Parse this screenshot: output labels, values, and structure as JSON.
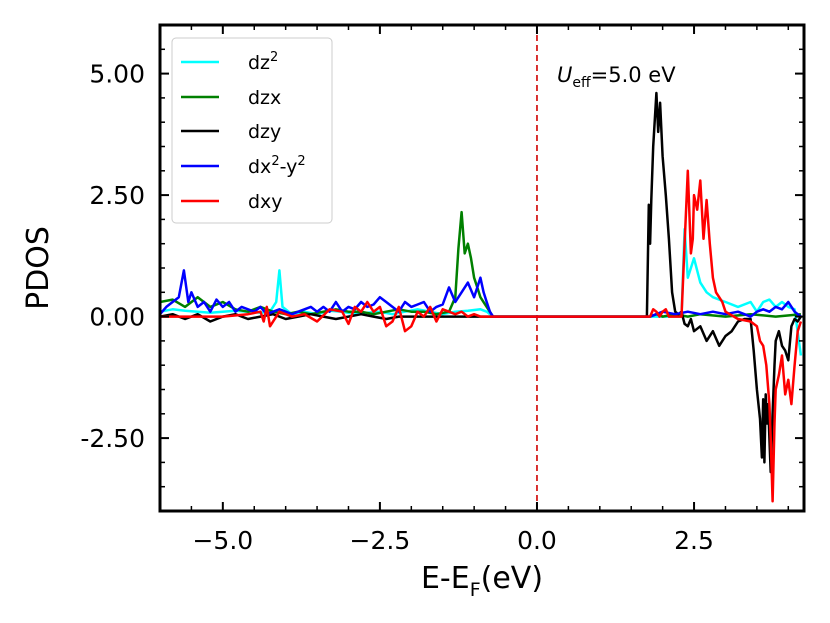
{
  "chart_data": {
    "type": "line",
    "title": "",
    "annotation": {
      "symbol": "U",
      "sub": "eff",
      "rest": "=5.0 eV"
    },
    "xlabel": {
      "main": "E-E",
      "sub": "F",
      "unit": "(eV)"
    },
    "ylabel": "PDOS",
    "xlim": [
      -6.0,
      4.25
    ],
    "ylim": [
      -4.0,
      6.0
    ],
    "xticks": [
      -5.0,
      -2.5,
      0.0,
      2.5
    ],
    "xtick_labels": [
      "−5.0",
      "−2.5",
      "0.0",
      "2.5"
    ],
    "yticks": [
      5.0,
      2.5,
      0.0,
      -2.5
    ],
    "ytick_labels": [
      "5.00",
      "2.50",
      "0.00",
      "-2.50"
    ],
    "fermi_level": 0.0,
    "legend": [
      {
        "label": "dz",
        "sup": "2",
        "color": "#00ffff"
      },
      {
        "label": "dzx",
        "color": "#008000"
      },
      {
        "label": "dzy",
        "color": "#000000"
      },
      {
        "label": "dx",
        "sup": "2",
        "mid": "-y",
        "sup2": "2",
        "color": "#0000ff"
      },
      {
        "label": "dxy",
        "color": "#ff0000"
      }
    ],
    "series": [
      {
        "name": "dz2",
        "color": "#00ffff",
        "x": [
          -6.0,
          -5.8,
          -5.6,
          -5.4,
          -5.2,
          -5.0,
          -4.8,
          -4.6,
          -4.4,
          -4.25,
          -4.15,
          -4.1,
          -4.05,
          -3.9,
          -3.7,
          -3.5,
          -3.3,
          -3.1,
          -2.9,
          -2.7,
          -2.5,
          -2.3,
          -2.1,
          -1.9,
          -1.7,
          -1.5,
          -1.3,
          -1.1,
          -0.9,
          -0.8,
          -0.7,
          0.0,
          1.0,
          1.8,
          2.3,
          2.35,
          2.4,
          2.5,
          2.6,
          2.7,
          2.8,
          3.0,
          3.2,
          3.4,
          3.5,
          3.6,
          3.7,
          3.8,
          3.9,
          4.0,
          4.1,
          4.2
        ],
        "y": [
          0.1,
          0.15,
          0.12,
          0.1,
          0.08,
          0.1,
          0.12,
          0.1,
          0.08,
          0.1,
          0.3,
          0.95,
          0.2,
          0.05,
          0.1,
          0.05,
          0.12,
          0.1,
          0.05,
          0.08,
          0.1,
          0.05,
          0.1,
          0.15,
          0.1,
          0.05,
          0.1,
          0.12,
          0.15,
          0.1,
          0.0,
          0.0,
          0.0,
          0.0,
          0.0,
          1.8,
          0.8,
          1.2,
          0.7,
          0.5,
          0.4,
          0.3,
          0.2,
          0.3,
          0.1,
          0.3,
          0.35,
          0.2,
          0.3,
          0.2,
          0.15,
          -0.8
        ]
      },
      {
        "name": "dzx",
        "color": "#008000",
        "x": [
          -6.0,
          -5.8,
          -5.6,
          -5.4,
          -5.2,
          -5.0,
          -4.8,
          -4.6,
          -4.4,
          -4.2,
          -4.0,
          -3.8,
          -3.6,
          -3.4,
          -3.2,
          -3.0,
          -2.8,
          -2.6,
          -2.4,
          -2.2,
          -2.0,
          -1.8,
          -1.6,
          -1.4,
          -1.3,
          -1.25,
          -1.2,
          -1.15,
          -1.1,
          -1.05,
          -1.0,
          -0.95,
          -0.9,
          -0.8,
          -0.7,
          0.0,
          1.0,
          1.8,
          1.9,
          2.0,
          2.2,
          2.4,
          2.6,
          3.0,
          3.4,
          3.8,
          4.2
        ],
        "y": [
          0.3,
          0.35,
          0.2,
          0.4,
          0.2,
          0.3,
          0.15,
          0.1,
          0.2,
          0.1,
          0.05,
          0.1,
          0.05,
          0.1,
          0.15,
          0.1,
          0.1,
          0.05,
          0.1,
          0.15,
          0.1,
          0.1,
          0.05,
          0.1,
          0.4,
          1.4,
          2.15,
          1.3,
          1.5,
          1.2,
          0.8,
          0.6,
          0.4,
          0.2,
          0.0,
          0.0,
          0.0,
          0.0,
          0.05,
          0.0,
          0.05,
          0.0,
          0.05,
          0.0,
          0.05,
          0.0,
          0.05
        ]
      },
      {
        "name": "dzy",
        "color": "#000000",
        "x": [
          -6.0,
          -5.8,
          -5.6,
          -5.4,
          -5.2,
          -5.0,
          -4.8,
          -4.6,
          -4.4,
          -4.2,
          -4.0,
          -3.8,
          -3.6,
          -3.4,
          -3.2,
          -3.0,
          -2.8,
          -2.6,
          -2.4,
          -2.2,
          -2.0,
          -1.5,
          -1.0,
          -0.7,
          0.0,
          1.0,
          1.75,
          1.78,
          1.8,
          1.82,
          1.85,
          1.9,
          1.93,
          1.96,
          2.0,
          2.05,
          2.1,
          2.15,
          2.2,
          2.25,
          2.3,
          2.32,
          2.35,
          2.4,
          2.45,
          2.5,
          2.6,
          2.7,
          2.8,
          2.9,
          3.0,
          3.1,
          3.2,
          3.3,
          3.4,
          3.45,
          3.5,
          3.55,
          3.58,
          3.6,
          3.62,
          3.64,
          3.66,
          3.68,
          3.7,
          3.72,
          3.75,
          3.78,
          3.8,
          3.85,
          3.9,
          3.95,
          4.0,
          4.05,
          4.1,
          4.15,
          4.2
        ],
        "y": [
          0.0,
          0.05,
          -0.05,
          0.05,
          -0.1,
          0.0,
          0.05,
          -0.05,
          0.0,
          0.05,
          -0.05,
          0.0,
          0.05,
          0.0,
          -0.05,
          0.0,
          0.05,
          0.0,
          -0.05,
          0.0,
          0.0,
          0.0,
          0.0,
          0.0,
          0.0,
          0.0,
          0.0,
          2.3,
          1.5,
          2.4,
          3.5,
          4.6,
          3.8,
          4.4,
          3.3,
          2.5,
          1.6,
          0.5,
          0.1,
          0.05,
          0.1,
          0.0,
          -0.15,
          -0.2,
          -0.05,
          -0.3,
          -0.2,
          -0.5,
          -0.3,
          -0.6,
          -0.4,
          -0.3,
          -0.1,
          -0.05,
          -0.05,
          -0.7,
          -1.5,
          -2.1,
          -2.9,
          -1.7,
          -3.0,
          -1.6,
          -2.2,
          -1.8,
          -2.5,
          -3.2,
          -2.0,
          -1.0,
          -0.5,
          -0.3,
          -0.6,
          -0.7,
          -0.9,
          -0.2,
          -0.05,
          -0.1,
          0.0
        ]
      },
      {
        "name": "dx2-y2",
        "color": "#0000ff",
        "x": [
          -6.0,
          -5.9,
          -5.8,
          -5.7,
          -5.62,
          -5.55,
          -5.5,
          -5.4,
          -5.3,
          -5.2,
          -5.1,
          -5.0,
          -4.9,
          -4.8,
          -4.7,
          -4.6,
          -4.5,
          -4.4,
          -4.3,
          -4.2,
          -4.1,
          -4.0,
          -3.9,
          -3.8,
          -3.7,
          -3.6,
          -3.5,
          -3.4,
          -3.3,
          -3.2,
          -3.1,
          -3.0,
          -2.9,
          -2.8,
          -2.7,
          -2.6,
          -2.5,
          -2.4,
          -2.3,
          -2.2,
          -2.1,
          -2.0,
          -1.9,
          -1.8,
          -1.7,
          -1.6,
          -1.5,
          -1.4,
          -1.3,
          -1.2,
          -1.1,
          -1.0,
          -0.9,
          -0.85,
          -0.8,
          -0.75,
          -0.7,
          0.0,
          1.0,
          1.8,
          2.0,
          2.2,
          2.4,
          2.6,
          2.8,
          3.0,
          3.2,
          3.4,
          3.5,
          3.6,
          3.7,
          3.8,
          3.9,
          4.0,
          4.1,
          4.2
        ],
        "y": [
          0.05,
          0.2,
          0.3,
          0.4,
          0.95,
          0.3,
          0.5,
          0.2,
          0.3,
          0.1,
          0.35,
          0.2,
          0.3,
          0.1,
          0.2,
          0.15,
          0.1,
          0.2,
          0.05,
          0.1,
          0.15,
          0.1,
          0.05,
          0.1,
          0.15,
          0.2,
          0.1,
          0.2,
          0.1,
          0.3,
          0.1,
          0.2,
          0.15,
          0.3,
          0.2,
          0.25,
          0.4,
          0.3,
          0.2,
          0.1,
          0.3,
          0.2,
          0.25,
          0.3,
          0.1,
          0.2,
          0.25,
          0.6,
          0.3,
          0.5,
          0.7,
          0.4,
          0.8,
          0.5,
          0.3,
          0.1,
          0.0,
          0.0,
          0.0,
          0.0,
          0.1,
          0.05,
          0.1,
          0.05,
          0.1,
          0.05,
          0.1,
          0.0,
          0.1,
          0.15,
          0.1,
          0.2,
          0.15,
          0.3,
          0.1,
          0.0
        ]
      },
      {
        "name": "dxy",
        "color": "#ff0000",
        "x": [
          -6.0,
          -5.0,
          -4.6,
          -4.4,
          -4.35,
          -4.3,
          -4.25,
          -4.1,
          -3.9,
          -3.7,
          -3.5,
          -3.3,
          -3.1,
          -3.0,
          -2.9,
          -2.8,
          -2.7,
          -2.6,
          -2.5,
          -2.4,
          -2.3,
          -2.2,
          -2.1,
          -2.0,
          -1.9,
          -1.8,
          -1.7,
          -1.6,
          -1.5,
          -1.4,
          -1.3,
          -1.2,
          -1.1,
          -1.0,
          -0.9,
          -0.8,
          -0.7,
          0.0,
          1.0,
          1.8,
          1.85,
          1.9,
          1.95,
          2.0,
          2.05,
          2.1,
          2.3,
          2.35,
          2.4,
          2.45,
          2.48,
          2.5,
          2.55,
          2.6,
          2.65,
          2.7,
          2.75,
          2.8,
          2.85,
          2.9,
          2.95,
          3.0,
          3.2,
          3.4,
          3.5,
          3.55,
          3.6,
          3.65,
          3.7,
          3.72,
          3.75,
          3.78,
          3.8,
          3.85,
          3.9,
          3.95,
          4.0,
          4.05,
          4.1,
          4.15,
          4.2
        ],
        "y": [
          0.0,
          0.0,
          0.05,
          0.1,
          -0.1,
          0.2,
          -0.2,
          0.1,
          0.0,
          0.05,
          -0.1,
          0.15,
          0.1,
          -0.15,
          0.2,
          0.1,
          0.3,
          0.1,
          0.2,
          -0.2,
          -0.1,
          0.2,
          -0.3,
          -0.2,
          0.1,
          0.0,
          0.2,
          -0.1,
          0.15,
          0.1,
          0.05,
          0.1,
          0.0,
          0.05,
          0.0,
          0.0,
          0.0,
          0.0,
          0.0,
          0.0,
          0.15,
          0.1,
          0.0,
          0.1,
          0.15,
          0.0,
          0.0,
          1.5,
          3.0,
          1.3,
          1.6,
          2.5,
          2.2,
          2.8,
          1.6,
          2.4,
          1.5,
          0.8,
          0.5,
          0.4,
          0.3,
          0.1,
          -0.05,
          -0.1,
          -0.2,
          -0.5,
          -0.6,
          -1.0,
          -1.8,
          -2.5,
          -3.8,
          -2.2,
          -1.5,
          -1.2,
          -0.8,
          -1.6,
          -1.3,
          -1.8,
          -1.0,
          -0.3,
          -0.1
        ]
      }
    ]
  }
}
